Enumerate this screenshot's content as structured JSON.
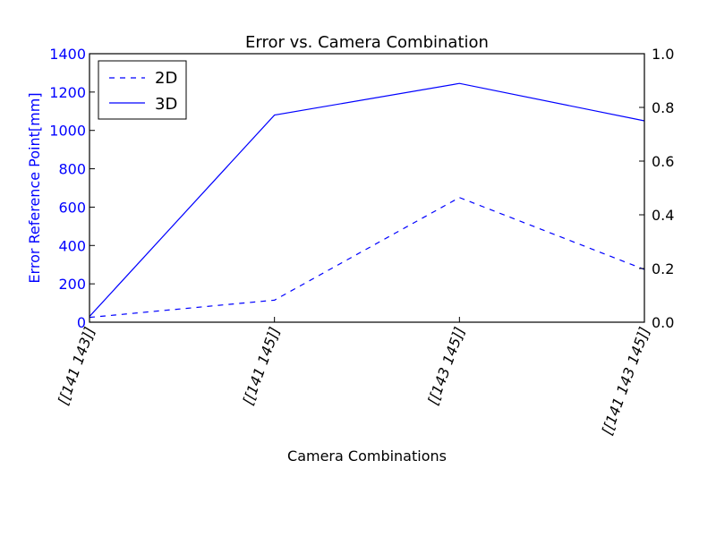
{
  "chart_data": {
    "type": "line",
    "title": "Error vs. Camera Combination",
    "xlabel": "Camera Combinations",
    "ylabel": "Error Reference Point[mm]",
    "categories": [
      "[[141 143]]",
      "[[141 145]]",
      "[[143 145]]",
      "[[141 143 145]]"
    ],
    "ylim": [
      0,
      1400
    ],
    "yticks": [
      "0",
      "200",
      "400",
      "600",
      "800",
      "1000",
      "1200",
      "1400"
    ],
    "y2lim": [
      0,
      1.0
    ],
    "y2ticks": [
      "0.0",
      "0.2",
      "0.4",
      "0.6",
      "0.8",
      "1.0"
    ],
    "series": [
      {
        "name": "2D",
        "style": "dashed",
        "color": "#0000ff",
        "values": [
          25,
          115,
          650,
          275
        ]
      },
      {
        "name": "3D",
        "style": "solid",
        "color": "#0000ff",
        "values": [
          30,
          1080,
          1245,
          1050
        ]
      }
    ],
    "legend_position": "top-left",
    "left_axis_color": "#0000ff",
    "right_axis_color": "#000000"
  }
}
